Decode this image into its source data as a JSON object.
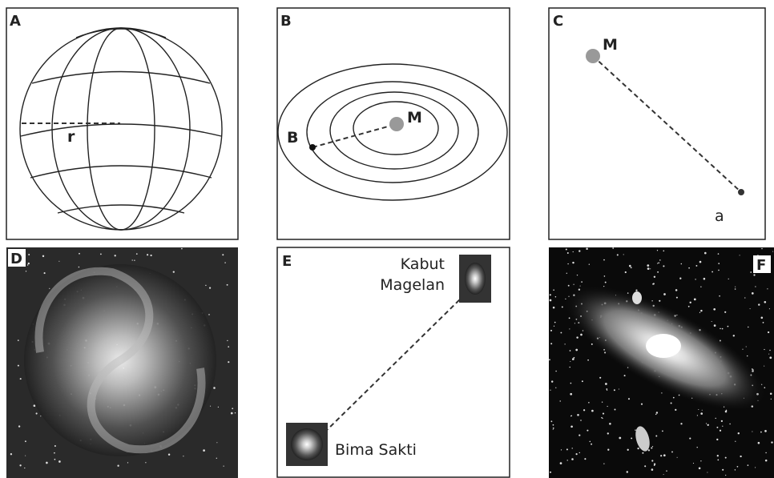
{
  "panels": [
    {
      "letter": "A",
      "labels": [
        "r"
      ]
    },
    {
      "letter": "B",
      "labels": [
        "B",
        "M"
      ]
    },
    {
      "letter": "C",
      "labels": [
        "M",
        "a"
      ]
    },
    {
      "letter": "D"
    },
    {
      "letter": "E",
      "labels": [
        "Kabut",
        "Magelan",
        "Bima Sakti"
      ]
    },
    {
      "letter": "F"
    }
  ]
}
